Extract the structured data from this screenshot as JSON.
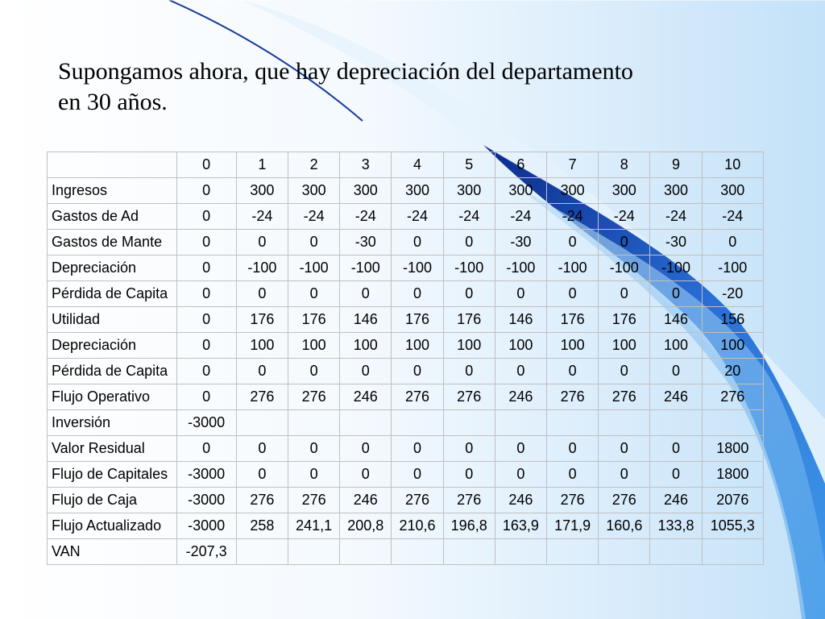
{
  "title": "Supongamos ahora, que hay depreciación del departamento\nen 30 años.",
  "table": {
    "header": [
      "",
      "0",
      "1",
      "2",
      "3",
      "4",
      "5",
      "6",
      "7",
      "8",
      "9",
      "10"
    ],
    "rows": [
      [
        "Ingresos",
        "0",
        "300",
        "300",
        "300",
        "300",
        "300",
        "300",
        "300",
        "300",
        "300",
        "300"
      ],
      [
        "Gastos de Ad",
        "0",
        "-24",
        "-24",
        "-24",
        "-24",
        "-24",
        "-24",
        "-24",
        "-24",
        "-24",
        "-24"
      ],
      [
        "Gastos de Mante",
        "0",
        "0",
        "0",
        "-30",
        "0",
        "0",
        "-30",
        "0",
        "0",
        "-30",
        "0"
      ],
      [
        "Depreciación",
        "0",
        "-100",
        "-100",
        "-100",
        "-100",
        "-100",
        "-100",
        "-100",
        "-100",
        "-100",
        "-100"
      ],
      [
        "Pérdida de Capita",
        "0",
        "0",
        "0",
        "0",
        "0",
        "0",
        "0",
        "0",
        "0",
        "0",
        "-20"
      ],
      [
        "Utilidad",
        "0",
        "176",
        "176",
        "146",
        "176",
        "176",
        "146",
        "176",
        "176",
        "146",
        "156"
      ],
      [
        "Depreciación",
        "0",
        "100",
        "100",
        "100",
        "100",
        "100",
        "100",
        "100",
        "100",
        "100",
        "100"
      ],
      [
        "Pérdida de Capita",
        "0",
        "0",
        "0",
        "0",
        "0",
        "0",
        "0",
        "0",
        "0",
        "0",
        "20"
      ],
      [
        "Flujo Operativo",
        "0",
        "276",
        "276",
        "246",
        "276",
        "276",
        "246",
        "276",
        "276",
        "246",
        "276"
      ],
      [
        "Inversión",
        "-3000",
        "",
        "",
        "",
        "",
        "",
        "",
        "",
        "",
        "",
        ""
      ],
      [
        "Valor Residual",
        "0",
        "0",
        "0",
        "0",
        "0",
        "0",
        "0",
        "0",
        "0",
        "0",
        "1800"
      ],
      [
        "Flujo de Capitales",
        "-3000",
        "0",
        "0",
        "0",
        "0",
        "0",
        "0",
        "0",
        "0",
        "0",
        "1800"
      ],
      [
        "Flujo de Caja",
        "-3000",
        "276",
        "276",
        "246",
        "276",
        "276",
        "246",
        "276",
        "276",
        "246",
        "2076"
      ],
      [
        "Flujo Actualizado",
        "-3000",
        "258",
        "241,1",
        "200,8",
        "210,6",
        "196,8",
        "163,9",
        "171,9",
        "160,6",
        "133,8",
        "1055,3"
      ],
      [
        "VAN",
        "-207,3",
        "",
        "",
        "",
        "",
        "",
        "",
        "",
        "",
        "",
        ""
      ]
    ]
  },
  "colors": {
    "ribbon_dark": "#0b2a8c",
    "ribbon_light": "#3f9ae8",
    "line": "#1a3a9c"
  }
}
